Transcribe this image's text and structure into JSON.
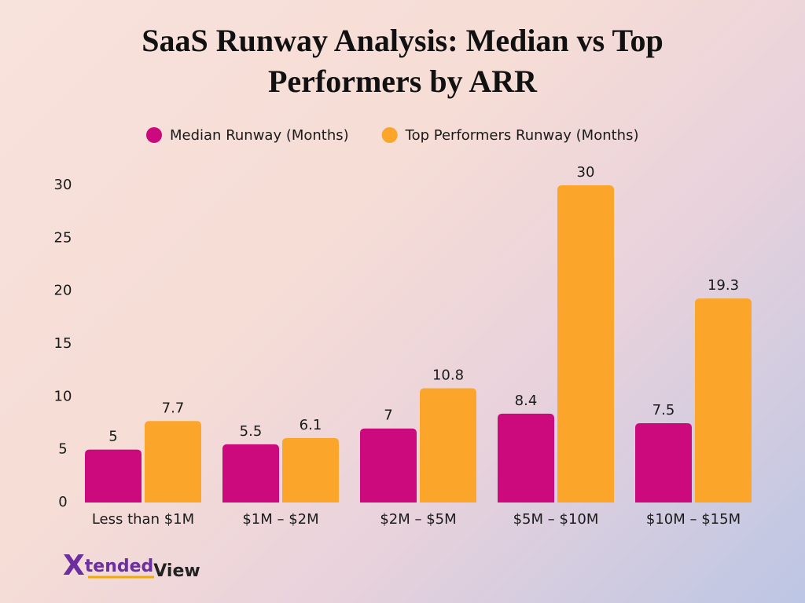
{
  "chart_data": {
    "type": "bar",
    "title": "SaaS Runway Analysis: Median vs Top Performers by ARR",
    "categories": [
      "Less than $1M",
      "$1M – $2M",
      "$2M – $5M",
      "$5M – $10M",
      "$10M – $15M"
    ],
    "series": [
      {
        "name": "Median Runway (Months)",
        "color": "#cc0a7e",
        "values": [
          5,
          5.5,
          7,
          8.4,
          7.5
        ]
      },
      {
        "name": "Top Performers Runway (Months)",
        "color": "#fba62a",
        "values": [
          7.7,
          6.1,
          10.8,
          30,
          19.3
        ]
      }
    ],
    "ylim": [
      0,
      30
    ],
    "yticks": [
      0,
      5,
      10,
      15,
      20,
      25,
      30
    ],
    "grid": false,
    "legend": "top"
  },
  "brand": [
    "X",
    "tended",
    "View"
  ]
}
